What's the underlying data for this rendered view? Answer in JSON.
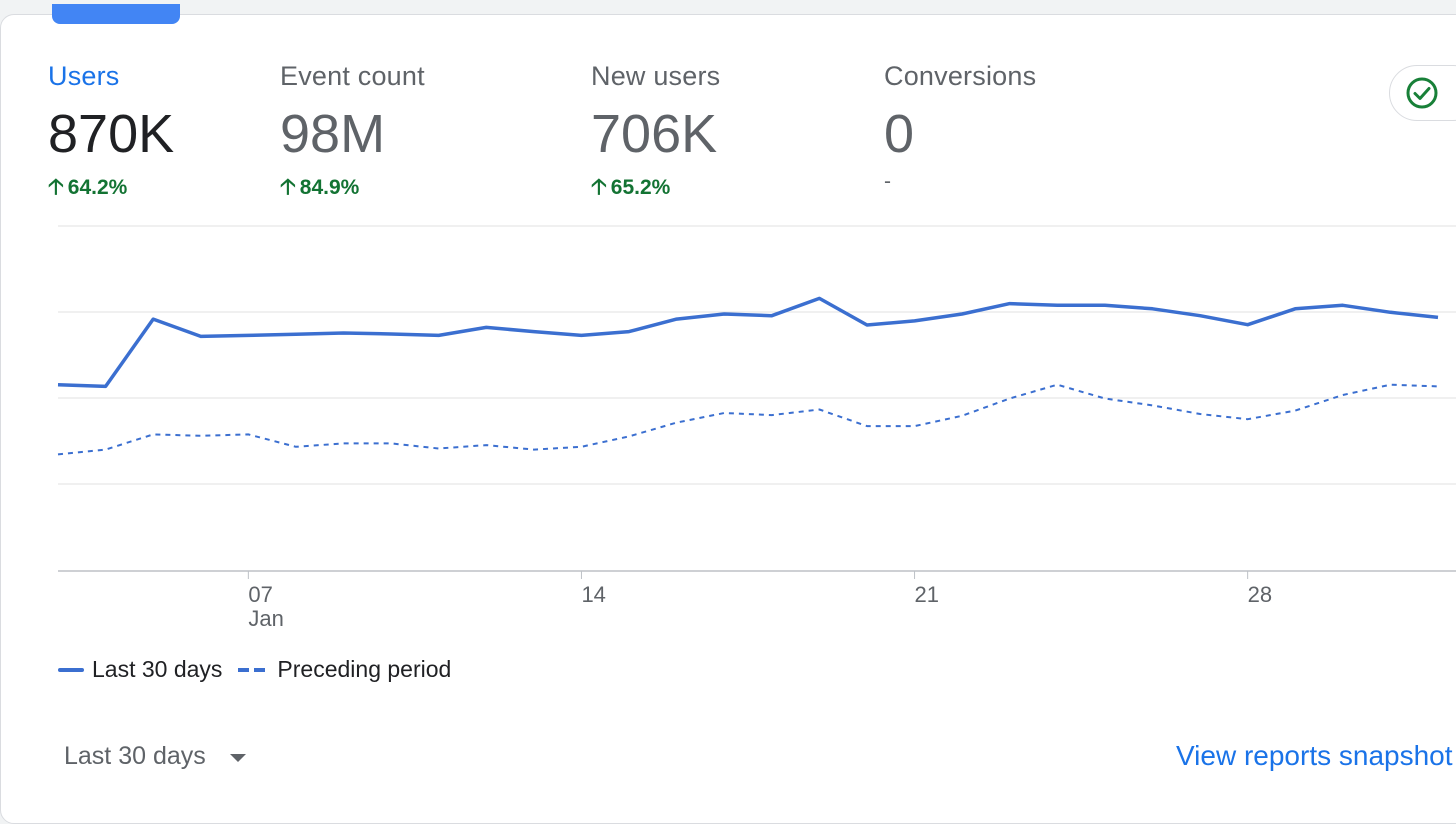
{
  "metrics": [
    {
      "label": "Users",
      "value": "870K",
      "change": "64.2%",
      "active": true
    },
    {
      "label": "Event count",
      "value": "98M",
      "change": "84.9%",
      "active": false
    },
    {
      "label": "New users",
      "value": "706K",
      "change": "65.2%",
      "active": false
    },
    {
      "label": "Conversions",
      "value": "0",
      "change": "-",
      "active": false
    }
  ],
  "icons": {
    "change_up": "arrow-up-icon",
    "check": "check-circle-icon",
    "caret": "dropdown-caret-icon"
  },
  "colors": {
    "accent": "#1a73e8",
    "line": "#3b6fd0",
    "positive": "#137333",
    "check": "#188038"
  },
  "chart_data": {
    "type": "line",
    "x_tick_labels": [
      "07\nJan",
      "14",
      "21",
      "28"
    ],
    "y_relative_scale": "fraction of top gridline",
    "series": [
      {
        "name": "Last 30 days",
        "style": "solid",
        "values": [
          0.54,
          0.535,
          0.73,
          0.68,
          0.683,
          0.686,
          0.69,
          0.687,
          0.683,
          0.706,
          0.694,
          0.683,
          0.694,
          0.73,
          0.745,
          0.74,
          0.79,
          0.713,
          0.725,
          0.745,
          0.775,
          0.77,
          0.77,
          0.76,
          0.74,
          0.714,
          0.76,
          0.77,
          0.75,
          0.735
        ]
      },
      {
        "name": "Preceding period",
        "style": "dashed",
        "values": [
          0.338,
          0.352,
          0.396,
          0.392,
          0.396,
          0.36,
          0.37,
          0.37,
          0.355,
          0.365,
          0.352,
          0.36,
          0.39,
          0.43,
          0.458,
          0.452,
          0.468,
          0.42,
          0.42,
          0.45,
          0.5,
          0.54,
          0.5,
          0.48,
          0.455,
          0.44,
          0.465,
          0.51,
          0.54,
          0.535
        ]
      }
    ],
    "grid": true,
    "legend_position": "bottom-left"
  },
  "legend": {
    "solid_label": "Last 30 days",
    "dashed_label": "Preceding period"
  },
  "footer": {
    "range_label": "Last 30 days",
    "view_link": "View reports snapshot"
  }
}
